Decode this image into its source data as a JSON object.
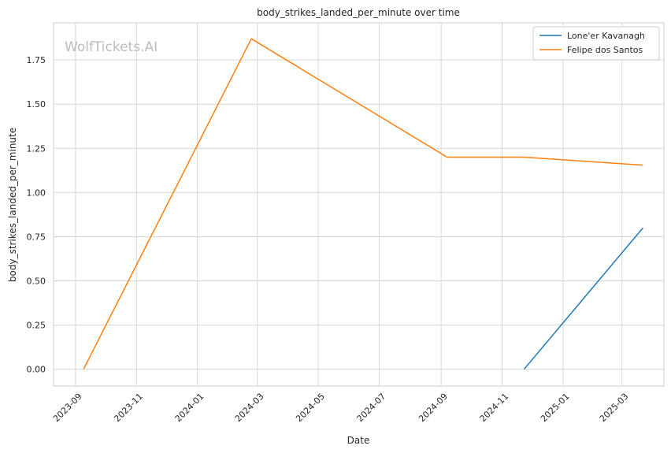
{
  "watermark": "WolfTickets.AI",
  "chart_data": {
    "type": "line",
    "title": "body_strikes_landed_per_minute over time",
    "xlabel": "Date",
    "ylabel": "body_strikes_landed_per_minute",
    "x_ticks": [
      "2023-09",
      "2023-11",
      "2024-01",
      "2024-03",
      "2024-05",
      "2024-07",
      "2024-09",
      "2024-11",
      "2025-01",
      "2025-03"
    ],
    "y_ticks": [
      "0.00",
      "0.25",
      "0.50",
      "0.75",
      "1.00",
      "1.25",
      "1.50",
      "1.75"
    ],
    "xlim": [
      "2023-08-10",
      "2025-04-12"
    ],
    "ylim": [
      -0.095,
      1.96
    ],
    "grid": true,
    "legend_position": "top-right",
    "series": [
      {
        "name": "Lone'er Kavanagh",
        "color": "#1f77b4",
        "points": [
          {
            "x": "2024-11-23",
            "y": 0.0
          },
          {
            "x": "2025-03-22",
            "y": 0.8
          }
        ]
      },
      {
        "name": "Felipe dos Santos",
        "color": "#ff7f0e",
        "points": [
          {
            "x": "2023-09-09",
            "y": 0.0
          },
          {
            "x": "2024-02-24",
            "y": 1.87
          },
          {
            "x": "2024-09-07",
            "y": 1.2
          },
          {
            "x": "2024-11-23",
            "y": 1.2
          },
          {
            "x": "2025-03-22",
            "y": 1.155
          }
        ]
      }
    ]
  }
}
